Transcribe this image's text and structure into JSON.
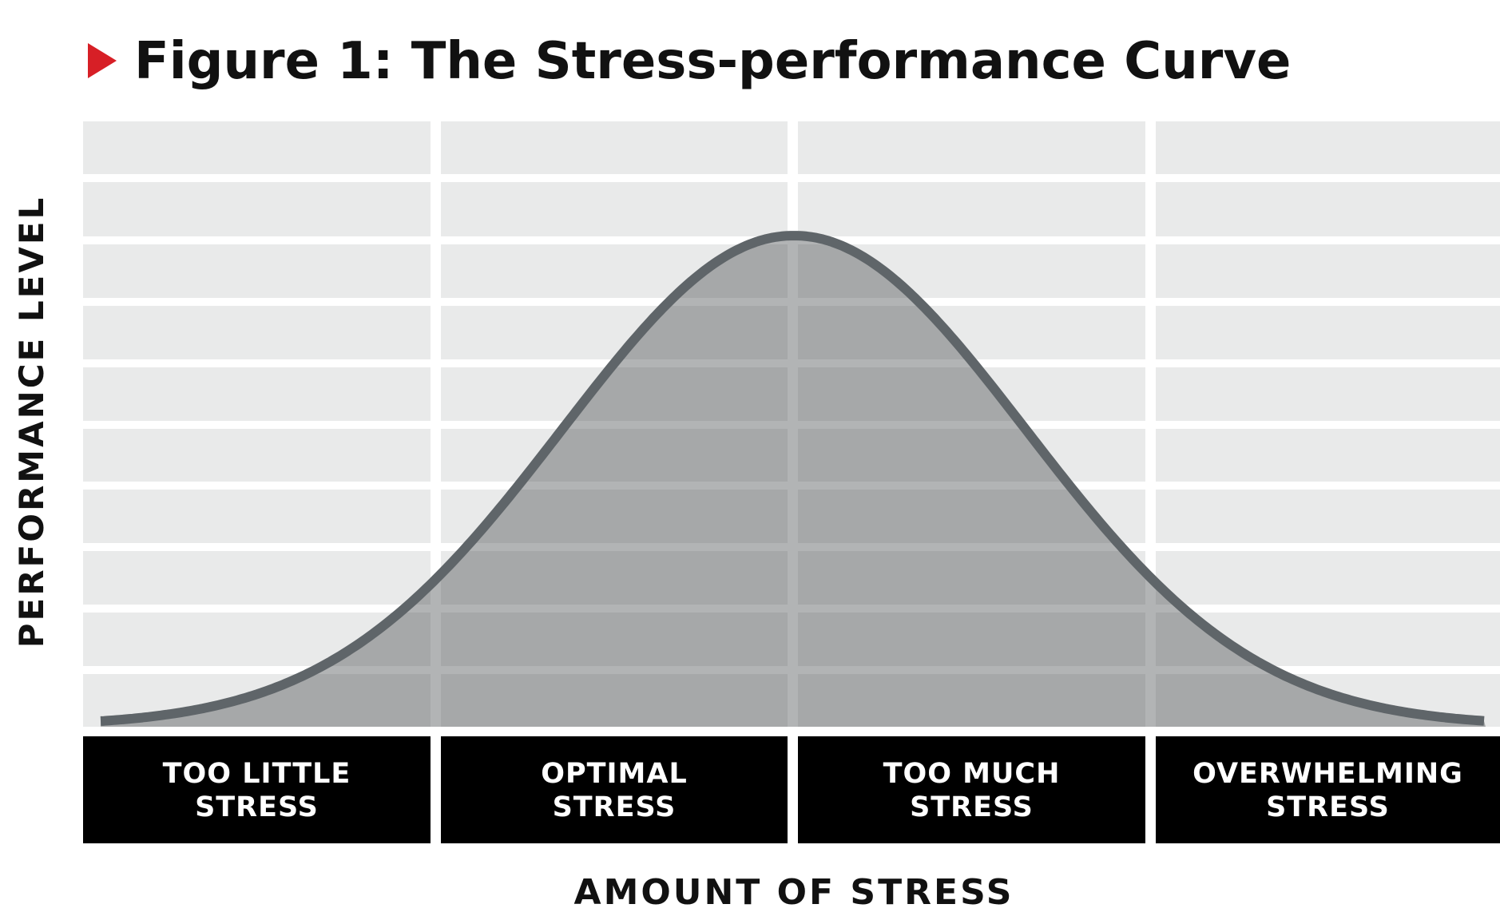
{
  "title": "Figure 1: The Stress-performance Curve",
  "y_axis_label": "PERFORMANCE LEVEL",
  "x_axis_label": "AMOUNT OF STRESS",
  "zones": [
    {
      "lines": [
        "TOO LITTLE",
        "STRESS"
      ]
    },
    {
      "lines": [
        "OPTIMAL",
        "STRESS"
      ]
    },
    {
      "lines": [
        "TOO MUCH",
        "STRESS"
      ]
    },
    {
      "lines": [
        "OVERWHELMING",
        "STRESS"
      ]
    }
  ]
}
